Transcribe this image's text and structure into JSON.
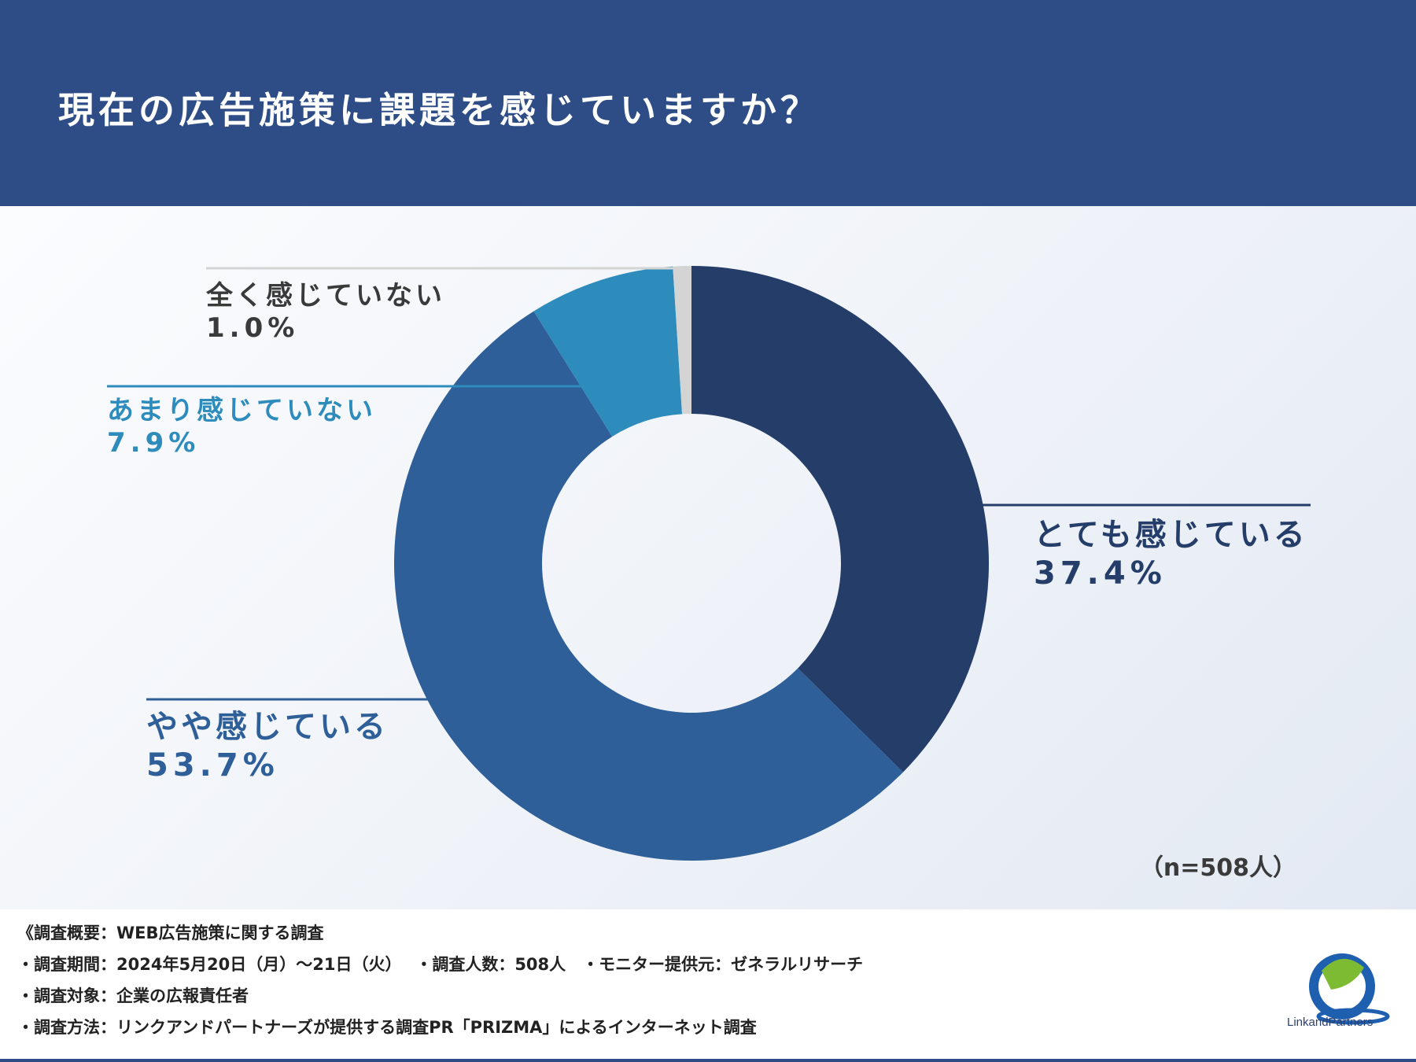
{
  "header": {
    "title": "現在の広告施策に課題を感じていますか？"
  },
  "chart_data": {
    "type": "pie",
    "title": "現在の広告施策に課題を感じていますか？",
    "donut": true,
    "categories": [
      "とても感じている",
      "やや感じている",
      "あまり感じていない",
      "全く感じていない"
    ],
    "values": [
      37.4,
      53.7,
      7.9,
      1.0
    ],
    "value_labels": [
      "37.4%",
      "53.7%",
      "7.9%",
      "1.0%"
    ],
    "colors": [
      "#253d69",
      "#2e5f98",
      "#2e8cbc",
      "#d4d4d4"
    ],
    "label_colors": [
      "#253d69",
      "#2e5f98",
      "#2e8cbc",
      "#3a3a3a"
    ],
    "sample_size": "（n=508人）"
  },
  "footer": {
    "overview": "《調査概要：WEB広告施策に関する調査",
    "period": "・調査期間：2024年5月20日（月）～21日（火）　 ・調査人数：508人　・モニター提供元：ゼネラルリサーチ",
    "target": "・調査対象：企業の広報責任者",
    "method": "・調査方法：リンクアンドパートナーズが提供する調査PR「PRIZMA」によるインターネット調査"
  },
  "logo": {
    "text": "LinkandPartners",
    "colors": [
      "#1e5fb0",
      "#7dbb32"
    ]
  }
}
